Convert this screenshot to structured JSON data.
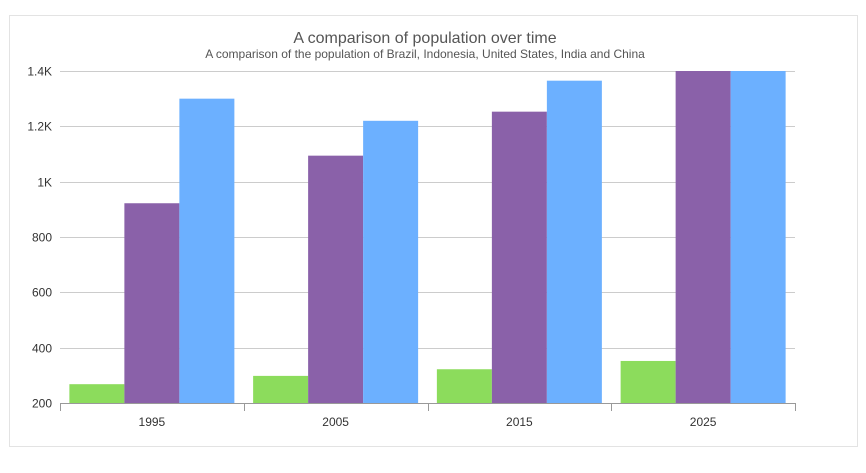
{
  "chart_data": {
    "type": "bar",
    "title": "A comparison of population over time",
    "subtitle": "A comparison of the population of Brazil, Indonesia, United States, India and China",
    "categories": [
      "1995",
      "2005",
      "2015",
      "2025"
    ],
    "series": [
      {
        "values": [
          268,
          298,
          322,
          352
        ],
        "color": "#8cdc5c"
      },
      {
        "values": [
          922,
          1094,
          1253,
          1400
        ],
        "color": "#8a61a9"
      },
      {
        "values": [
          1300,
          1220,
          1365,
          1400
        ],
        "color": "#6cb0ff"
      }
    ],
    "ylim": [
      200,
      1400
    ],
    "yticks": [
      200,
      400,
      600,
      800,
      1000,
      1200,
      1400
    ],
    "ytick_labels": [
      "200",
      "400",
      "600",
      "800",
      "1K",
      "1.2K",
      "1.4K"
    ],
    "grid": true,
    "legend": "none",
    "colors": {
      "grid": "#cccccc",
      "axis": "#999999",
      "frame_border": "#e3e3e3"
    }
  }
}
